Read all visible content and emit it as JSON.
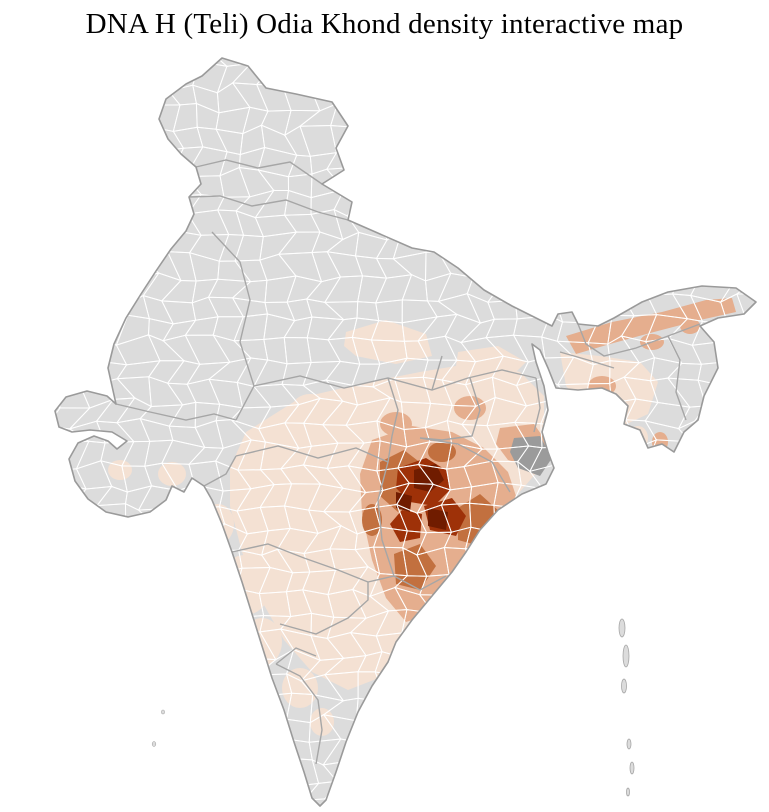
{
  "page": {
    "title": "DNA H (Teli) Odia Khond density interactive map",
    "background": "#ffffff"
  },
  "map": {
    "label": "District-level choropleth map of India",
    "colors": {
      "land": "#dcdcdc",
      "district_border": "#ffffff",
      "state_border": "#a6a6a6",
      "country_border": "#9a9a9a",
      "foreign_region": "#9b9b9b",
      "density_1": "#f4e1d3",
      "density_2": "#e5ae8e",
      "density_3": "#c2703f",
      "density_4": "#9e3108",
      "density_5": "#701c00"
    },
    "density_scale": [
      {
        "level": "none",
        "color": "#dcdcdc"
      },
      {
        "level": "very-low",
        "color": "#f4e1d3"
      },
      {
        "level": "low",
        "color": "#e5ae8e"
      },
      {
        "level": "medium",
        "color": "#c2703f"
      },
      {
        "level": "high",
        "color": "#9e3108"
      },
      {
        "level": "very-high",
        "color": "#701c00"
      }
    ],
    "regions": [
      {
        "area": "central Odisha district cluster",
        "density": "very-high"
      },
      {
        "area": "inner Odisha ring of districts",
        "density": "high"
      },
      {
        "area": "western Odisha border and Odisha coast districts",
        "density": "medium"
      },
      {
        "area": "Brahmaputra valley (Assam) districts",
        "density": "low"
      },
      {
        "area": "central and eastern India belt (MP, Maharashtra, Jharkhand, Telangana, Andhra)",
        "density": "very-low"
      },
      {
        "area": "rest of India",
        "density": "none"
      }
    ]
  }
}
